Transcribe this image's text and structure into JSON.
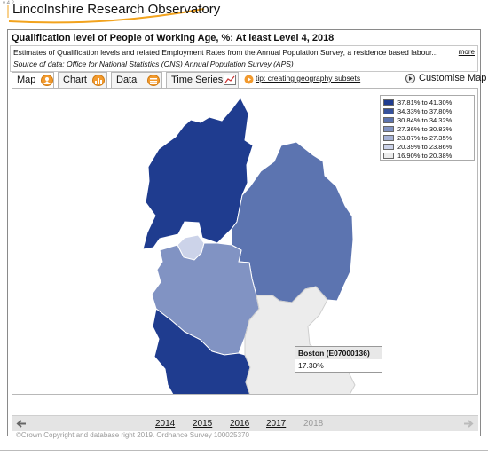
{
  "version": "v 4.2",
  "brand": {
    "title": "Lincolnshire Research Observatory"
  },
  "header": {
    "title": "Qualification level of People of Working Age, %: At least Level 4, 2018",
    "description": "Estimates of Qualification levels and related Employment Rates from the Annual Population Survey, a residence based labour...",
    "more_label": "more",
    "source": "Source of data: Office for National Statistics (ONS) Annual Population Survey (APS)"
  },
  "tabs": [
    {
      "label": "Map",
      "icon": "map-icon",
      "active": true
    },
    {
      "label": "Chart",
      "icon": "chart-icon",
      "active": false
    },
    {
      "label": "Data",
      "icon": "data-icon",
      "active": false
    },
    {
      "label": "Time Series",
      "icon": "time-series-icon",
      "active": false
    }
  ],
  "tip": {
    "label": "tip: creating geography subsets"
  },
  "customise": {
    "label": "Customise Map"
  },
  "legend": {
    "items": [
      {
        "label": "37.81% to 41.30%",
        "color": "#1f3c8f"
      },
      {
        "label": "34.33% to 37.80%",
        "color": "#36529c"
      },
      {
        "label": "30.84% to 34.32%",
        "color": "#5c74b0"
      },
      {
        "label": "27.36% to 30.83%",
        "color": "#8193c3"
      },
      {
        "label": "23.87% to 27.35%",
        "color": "#a6b2d6"
      },
      {
        "label": "20.39% to 23.86%",
        "color": "#ccd3e9"
      },
      {
        "label": "16.90% to 20.38%",
        "color": "#ececec"
      }
    ]
  },
  "tooltip": {
    "name": "Boston (E07000136)",
    "value": "17.30%"
  },
  "copyright": "©Crown Copyright and database right 2019. Ordnance Survey 100025370",
  "timebar": {
    "years": [
      {
        "label": "2014",
        "current": false
      },
      {
        "label": "2015",
        "current": false
      },
      {
        "label": "2016",
        "current": false
      },
      {
        "label": "2017",
        "current": false
      },
      {
        "label": "2018",
        "current": true
      }
    ]
  },
  "colors": {
    "accent": "#f29a2e",
    "map_dark": "#1f3c8f",
    "boston_fill": "#ececec"
  }
}
